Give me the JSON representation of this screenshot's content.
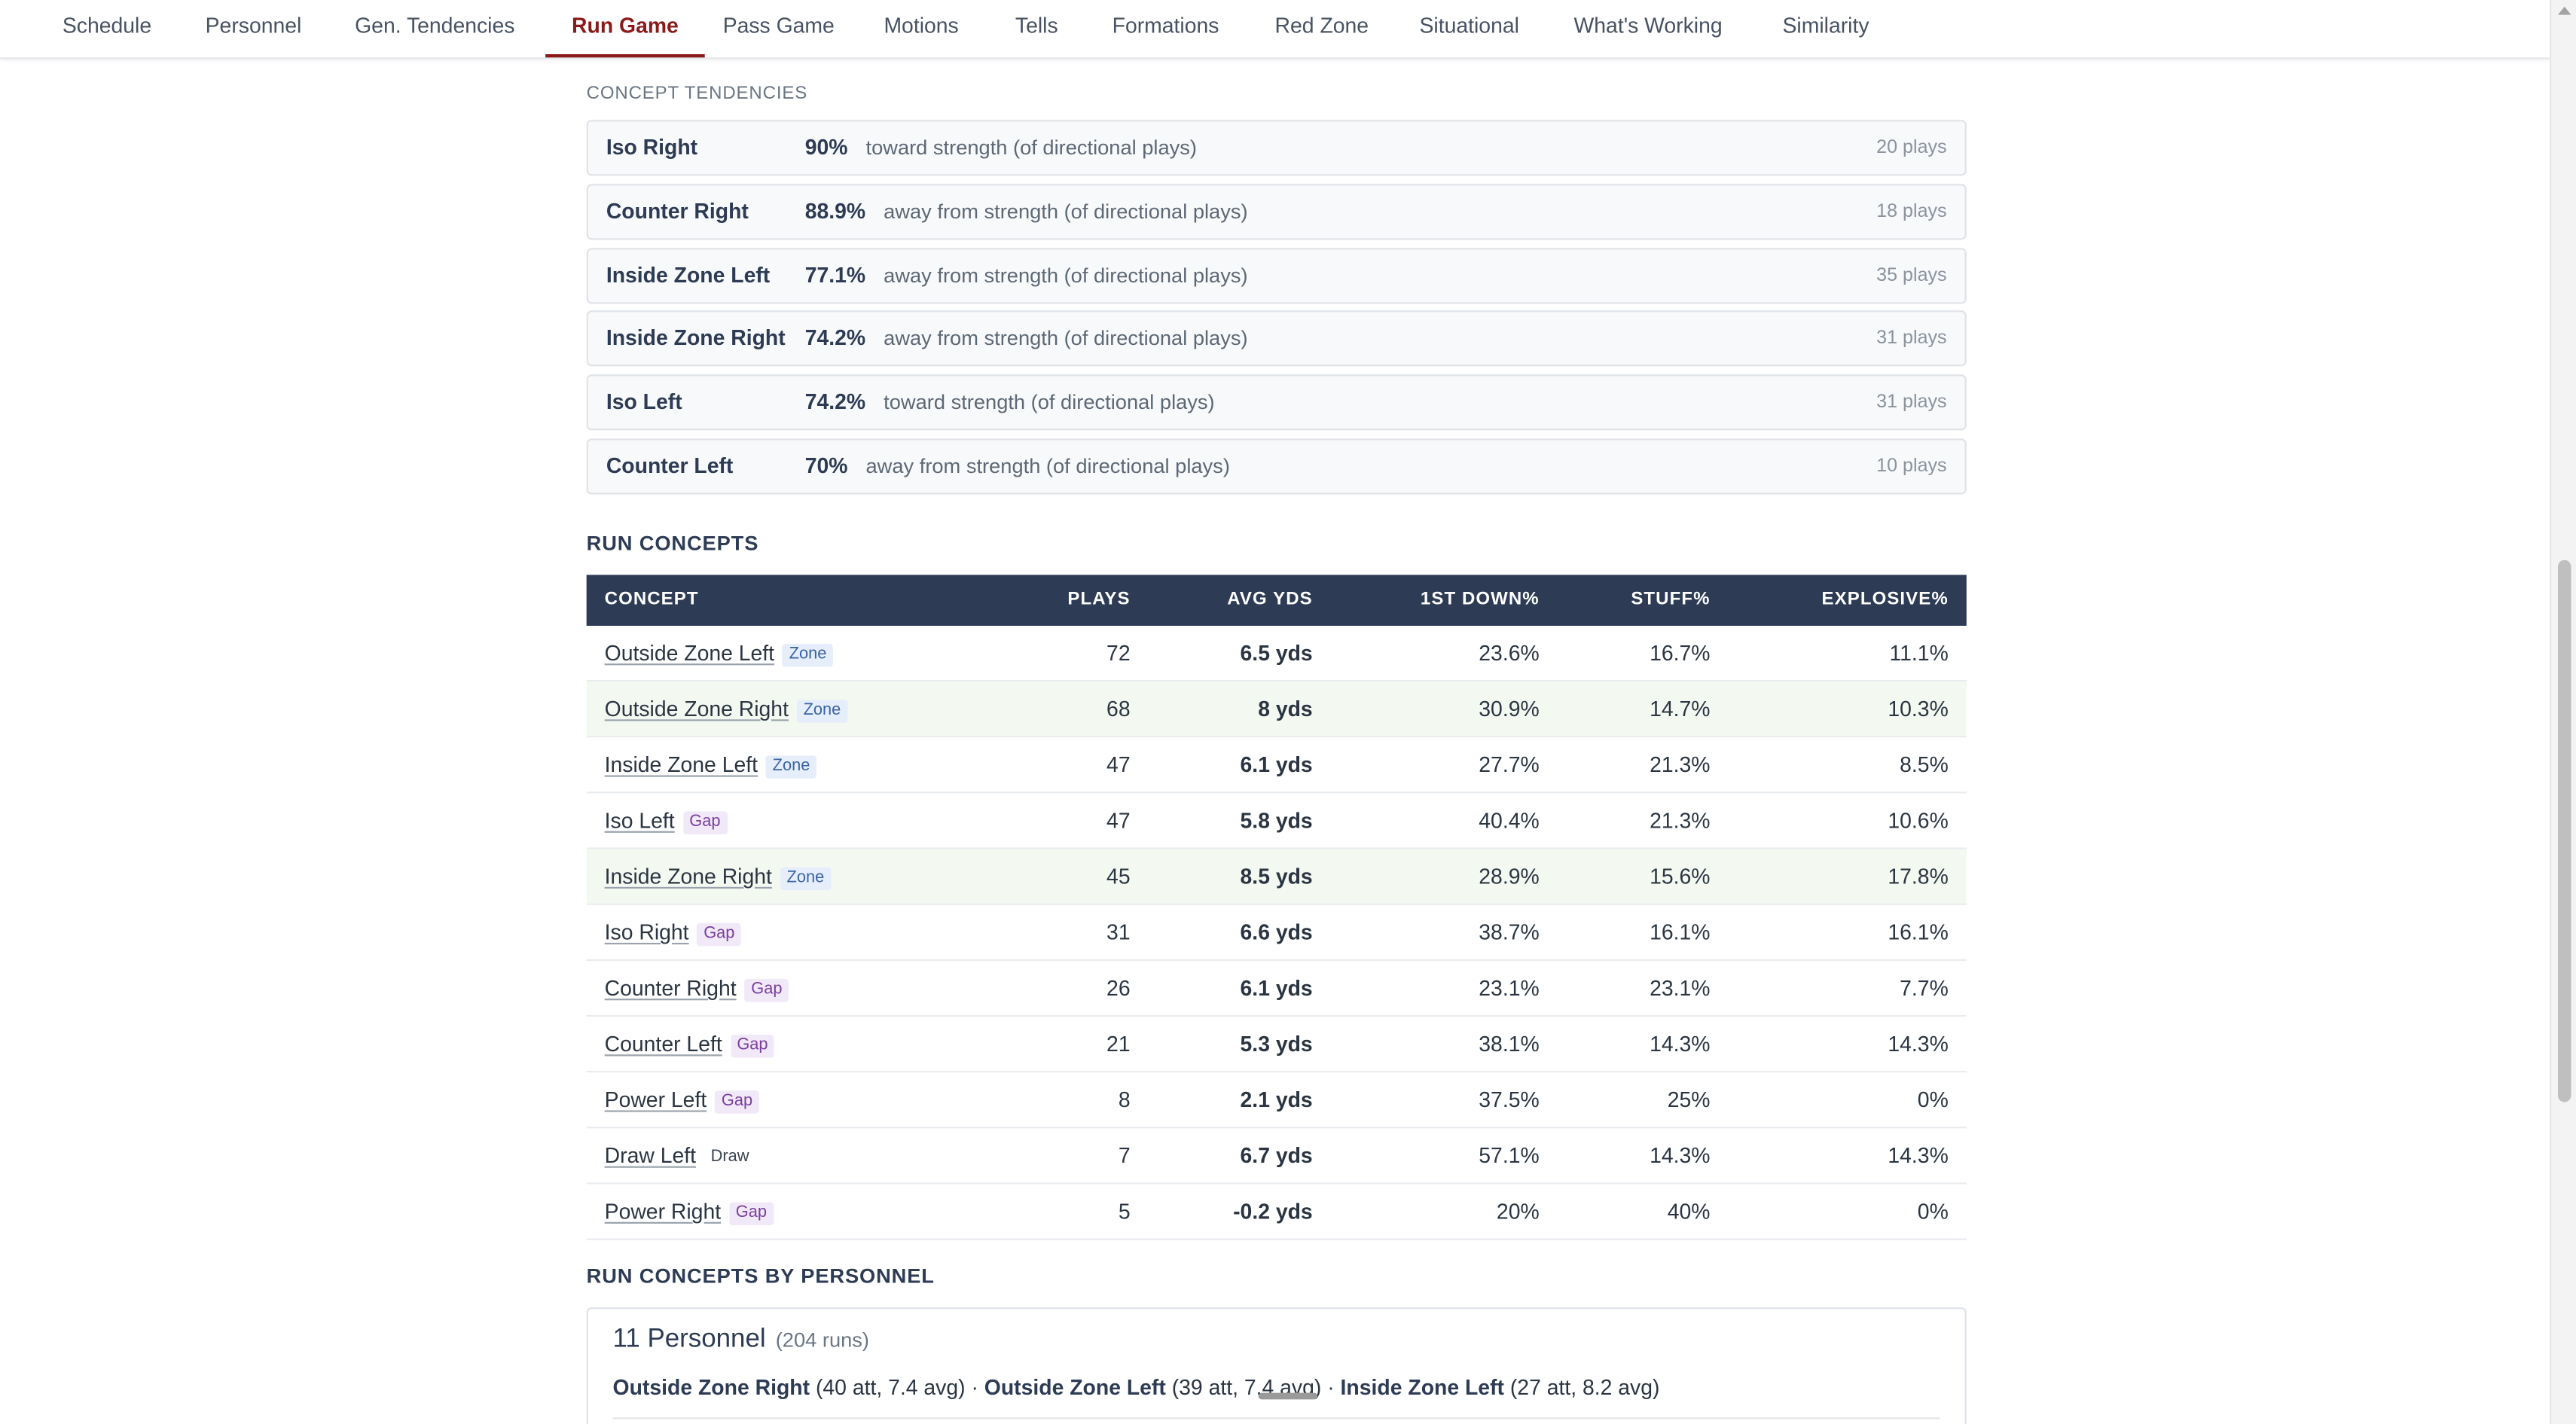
{
  "tabs": [
    "Schedule",
    "Personnel",
    "Gen. Tendencies",
    "Run Game",
    "Pass Game",
    "Motions",
    "Tells",
    "Formations",
    "Red Zone",
    "Situational",
    "What's Working",
    "Similarity"
  ],
  "active_tab": "Run Game",
  "concept_tendencies": {
    "label": "CONCEPT TENDENCIES",
    "rows": [
      {
        "name": "Iso Right",
        "pct": "90%",
        "desc": "toward strength (of directional plays)",
        "plays": "20 plays"
      },
      {
        "name": "Counter Right",
        "pct": "88.9%",
        "desc": "away from strength (of directional plays)",
        "plays": "18 plays"
      },
      {
        "name": "Inside Zone Left",
        "pct": "77.1%",
        "desc": "away from strength (of directional plays)",
        "plays": "35 plays"
      },
      {
        "name": "Inside Zone Right",
        "pct": "74.2%",
        "desc": "away from strength (of directional plays)",
        "plays": "31 plays"
      },
      {
        "name": "Iso Left",
        "pct": "74.2%",
        "desc": "toward strength (of directional plays)",
        "plays": "31 plays"
      },
      {
        "name": "Counter Left",
        "pct": "70%",
        "desc": "away from strength (of directional plays)",
        "plays": "10 plays"
      }
    ]
  },
  "run_concepts": {
    "title": "RUN CONCEPTS",
    "headers": {
      "concept": "CONCEPT",
      "plays": "PLAYS",
      "avg": "AVG YDS",
      "first_down": "1ST DOWN%",
      "stuff": "STUFF%",
      "explosive": "EXPLOSIVE%"
    },
    "rows": [
      {
        "name": "Outside Zone Left",
        "tag": "Zone",
        "plays": "72",
        "avg": "6.5 yds",
        "fd": "23.6%",
        "stuff": "16.7%",
        "exp": "11.1%",
        "highlight": false
      },
      {
        "name": "Outside Zone Right",
        "tag": "Zone",
        "plays": "68",
        "avg": "8 yds",
        "fd": "30.9%",
        "stuff": "14.7%",
        "exp": "10.3%",
        "highlight": true
      },
      {
        "name": "Inside Zone Left",
        "tag": "Zone",
        "plays": "47",
        "avg": "6.1 yds",
        "fd": "27.7%",
        "stuff": "21.3%",
        "exp": "8.5%",
        "highlight": false
      },
      {
        "name": "Iso Left",
        "tag": "Gap",
        "plays": "47",
        "avg": "5.8 yds",
        "fd": "40.4%",
        "stuff": "21.3%",
        "exp": "10.6%",
        "highlight": false
      },
      {
        "name": "Inside Zone Right",
        "tag": "Zone",
        "plays": "45",
        "avg": "8.5 yds",
        "fd": "28.9%",
        "stuff": "15.6%",
        "exp": "17.8%",
        "highlight": true
      },
      {
        "name": "Iso Right",
        "tag": "Gap",
        "plays": "31",
        "avg": "6.6 yds",
        "fd": "38.7%",
        "stuff": "16.1%",
        "exp": "16.1%",
        "highlight": false
      },
      {
        "name": "Counter Right",
        "tag": "Gap",
        "plays": "26",
        "avg": "6.1 yds",
        "fd": "23.1%",
        "stuff": "23.1%",
        "exp": "7.7%",
        "highlight": false
      },
      {
        "name": "Counter Left",
        "tag": "Gap",
        "plays": "21",
        "avg": "5.3 yds",
        "fd": "38.1%",
        "stuff": "14.3%",
        "exp": "14.3%",
        "highlight": false
      },
      {
        "name": "Power Left",
        "tag": "Gap",
        "plays": "8",
        "avg": "2.1 yds",
        "fd": "37.5%",
        "stuff": "25%",
        "exp": "0%",
        "highlight": false
      },
      {
        "name": "Draw Left",
        "tag": "Draw",
        "plays": "7",
        "avg": "6.7 yds",
        "fd": "57.1%",
        "stuff": "14.3%",
        "exp": "14.3%",
        "highlight": false
      },
      {
        "name": "Power Right",
        "tag": "Gap",
        "plays": "5",
        "avg": "-0.2 yds",
        "fd": "20%",
        "stuff": "40%",
        "exp": "0%",
        "highlight": false
      }
    ]
  },
  "run_concepts_by_personnel": {
    "title": "RUN CONCEPTS BY PERSONNEL",
    "cards": [
      {
        "title": "11 Personnel",
        "runs": "(204 runs)",
        "items": [
          {
            "name": "Outside Zone Right",
            "detail": "(40 att, 7.4 avg)"
          },
          {
            "name": "Outside Zone Left",
            "detail": "(39 att, 7.4 avg)"
          },
          {
            "name": "Inside Zone Left",
            "detail": "(27 att, 8.2 avg)"
          }
        ]
      }
    ]
  }
}
